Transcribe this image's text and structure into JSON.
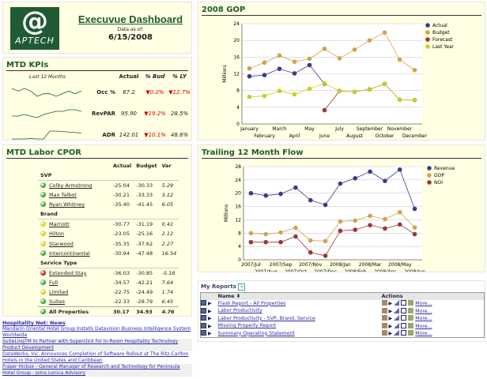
{
  "header": {
    "logo_text": "APTECH",
    "title": "Execuvue Dashboard",
    "data_as_of_label": "Data as of:",
    "date": "6/15/2008"
  },
  "kpis": {
    "title": "MTD KPIs",
    "col_trend": "Last 12 Months",
    "col_actual": "Actual",
    "col_bud": "% Bud",
    "col_ly": "% LY",
    "rows": [
      {
        "name": "Occ %",
        "actual": "67.2",
        "bud": "▼0.2%",
        "ly": "▼12.7%",
        "bud_neg": true,
        "ly_neg": true,
        "spark": [
          5,
          4,
          5,
          4,
          2,
          3,
          3,
          2,
          3,
          4,
          3,
          4
        ]
      },
      {
        "name": "RevPAR",
        "actual": "95.90",
        "bud": "▼19.2%",
        "ly": "28.5%",
        "bud_neg": true,
        "ly_neg": false,
        "spark": [
          2,
          2,
          3,
          2,
          1,
          3,
          4,
          5,
          5,
          6,
          6,
          5
        ]
      },
      {
        "name": "ADR",
        "actual": "142.01",
        "bud": "▼10.1%",
        "ly": "48.8%",
        "bud_neg": true,
        "ly_neg": false,
        "spark": [
          1,
          1,
          1,
          1.2,
          1,
          1,
          5,
          5,
          4.8,
          4.5,
          4.3,
          4
        ]
      }
    ]
  },
  "labor": {
    "title": "MTD Labor CPOR",
    "col_actual": "Actual",
    "col_budget": "Budget",
    "col_var": "Var",
    "sections": [
      {
        "name": "SVP",
        "rows": [
          {
            "name": "Colby Armstrong",
            "status": "green",
            "actual": "-25.04",
            "budget": "-30.33",
            "var": "5.29"
          },
          {
            "name": "Max Talbot",
            "status": "green",
            "actual": "-30.21",
            "budget": "-33.33",
            "var": "3.12"
          },
          {
            "name": "Ryan Whitney",
            "status": "green",
            "actual": "-35.40",
            "budget": "-41.45",
            "var": "6.05"
          }
        ]
      },
      {
        "name": "Brand",
        "rows": [
          {
            "name": "Marriott",
            "status": "yellow",
            "actual": "-30.77",
            "budget": "-31.19",
            "var": "0.41"
          },
          {
            "name": "Hilton",
            "status": "yellow",
            "actual": "-23.05",
            "budget": "-25.16",
            "var": "2.12"
          },
          {
            "name": "Starwood",
            "status": "yellow",
            "actual": "-35.35",
            "budget": "-37.62",
            "var": "2.27"
          },
          {
            "name": "Intercontinental",
            "status": "green",
            "actual": "-30.94",
            "budget": "-47.48",
            "var": "16.54"
          }
        ]
      },
      {
        "name": "Service Type",
        "rows": [
          {
            "name": "Extended Stay",
            "status": "red",
            "actual": "-36.03",
            "budget": "-30.85",
            "var": "-5.18"
          },
          {
            "name": "Full",
            "status": "green",
            "actual": "-34.57",
            "budget": "-42.21",
            "var": "7.64"
          },
          {
            "name": "Limited",
            "status": "yellow",
            "actual": "-22.75",
            "budget": "-24.49",
            "var": "1.74"
          },
          {
            "name": "Suites",
            "status": "green",
            "actual": "-22.33",
            "budget": "-28.79",
            "var": "6.45"
          }
        ]
      }
    ],
    "total": {
      "name": "All Properties",
      "status": "green",
      "actual": "30.17",
      "budget": "34.93",
      "var": "4.76"
    }
  },
  "news": {
    "title": "Hospitality Net: News",
    "items": [
      "Mandarin Oriental Hotel Group Installs Datavision Business Intelligence System Worldwide",
      "SuiteLinqTM to Partner with Superclick for In-Room Hospitality Technology Product Development",
      "DataWorks, Inc. Announces Completion of Software Rollout at The Ritz-Carlton Hotels in the United States and Caribbean",
      "Fraser Hickox - General Manager of Research and Technology for Peninsula Hotel Group - Joins Lonica Advisory"
    ]
  },
  "colors": {
    "actual": "#3a3a90",
    "budget": "#d2a24c",
    "forecast": "#a03434",
    "last_year": "#c9cc22",
    "green": "#2aa02a",
    "yellow": "#d8cc10",
    "red": "#c81020"
  },
  "chart_data": [
    {
      "type": "line",
      "title": "2008 GOP",
      "ylabel": "Millions",
      "ylim": [
        0,
        24
      ],
      "yticks": [
        0,
        4,
        8,
        12,
        16,
        20,
        24
      ],
      "grid": true,
      "legend": "right",
      "categories": [
        "January",
        "February",
        "March",
        "April",
        "May",
        "June",
        "July",
        "August",
        "September",
        "October",
        "November",
        "December"
      ],
      "series": [
        {
          "name": "Actual",
          "color": "#3a3a90",
          "values": [
            11.4,
            11.7,
            13.2,
            12.1,
            14.1,
            9.6,
            null,
            null,
            null,
            null,
            null,
            null
          ]
        },
        {
          "name": "Budget",
          "color": "#d2a24c",
          "values": [
            13.3,
            14.7,
            16.4,
            14.9,
            15.6,
            18.0,
            15.7,
            17.8,
            20.0,
            21.9,
            15.4,
            12.9
          ]
        },
        {
          "name": "Forecast",
          "color": "#a03434",
          "values": [
            null,
            null,
            null,
            null,
            null,
            3.3,
            7.9,
            7.7,
            8.3,
            9.6,
            5.8,
            5.7
          ]
        },
        {
          "name": "Last Year",
          "color": "#c9cc22",
          "values": [
            6.5,
            6.7,
            7.9,
            7.1,
            8.4,
            9.7,
            7.9,
            7.7,
            8.3,
            9.6,
            5.8,
            5.7
          ]
        }
      ]
    },
    {
      "type": "line",
      "title": "Trailing 12 Month Flow",
      "ylabel": "Millions",
      "ylim": [
        0,
        28
      ],
      "yticks": [
        0,
        4,
        8,
        12,
        16,
        20,
        24,
        28
      ],
      "grid": true,
      "legend": "right",
      "categories": [
        "2007/Jul",
        "2007/Aug",
        "2007/Sep",
        "2007/Oct",
        "2007/Nov",
        "2007/Dec",
        "2008/Jan",
        "2008/Feb",
        "2008/Mar",
        "2008/Apr",
        "2008/May",
        "2008/Jun"
      ],
      "series": [
        {
          "name": "Revenue",
          "color": "#3a3a90",
          "values": [
            20.0,
            19.3,
            19.8,
            21.7,
            17.9,
            16.5,
            22.9,
            24.5,
            26.5,
            23.7,
            27.1,
            15.3
          ]
        },
        {
          "name": "GOP",
          "color": "#d2a24c",
          "values": [
            8.0,
            7.7,
            8.2,
            9.6,
            5.8,
            5.6,
            11.5,
            11.8,
            13.2,
            12.2,
            14.3,
            9.7
          ]
        },
        {
          "name": "NOI",
          "color": "#a03434",
          "values": [
            5.3,
            5.3,
            5.3,
            7.0,
            2.2,
            1.2,
            8.7,
            9.0,
            10.4,
            9.4,
            10.6,
            7.7
          ]
        }
      ]
    }
  ],
  "reports": {
    "title": "My Reports",
    "col_name": "Name",
    "col_actions": "Actions",
    "more_label": "More...",
    "items": [
      "Flash Report - All Properties",
      "Labor Productivity",
      "Labor Productivity - SVP, Brand, Service",
      "Missing Property Report",
      "Summary Operating Statement"
    ]
  }
}
